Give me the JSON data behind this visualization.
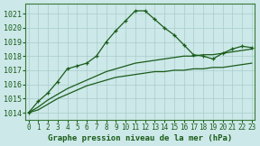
{
  "xlabel": "Graphe pression niveau de la mer (hPa)",
  "bg_color": "#cce8e8",
  "grid_color": "#aacccc",
  "line_color": "#1a5c1a",
  "x": [
    0,
    1,
    2,
    3,
    4,
    5,
    6,
    7,
    8,
    9,
    10,
    11,
    12,
    13,
    14,
    15,
    16,
    17,
    18,
    19,
    20,
    21,
    22,
    23
  ],
  "y_main": [
    1014.0,
    1014.8,
    1015.4,
    1016.2,
    1017.1,
    1017.3,
    1017.5,
    1018.0,
    1019.0,
    1019.8,
    1020.5,
    1021.2,
    1021.2,
    1020.6,
    1020.0,
    1019.5,
    1018.8,
    1018.1,
    1018.0,
    1017.8,
    1018.2,
    1018.5,
    1018.7,
    1018.6
  ],
  "y_smooth1": [
    1014.0,
    1014.4,
    1014.9,
    1015.3,
    1015.7,
    1016.0,
    1016.3,
    1016.6,
    1016.9,
    1017.1,
    1017.3,
    1017.5,
    1017.6,
    1017.7,
    1017.8,
    1017.9,
    1018.0,
    1018.0,
    1018.1,
    1018.1,
    1018.2,
    1018.3,
    1018.4,
    1018.5
  ],
  "y_smooth2": [
    1014.0,
    1014.2,
    1014.6,
    1015.0,
    1015.3,
    1015.6,
    1015.9,
    1016.1,
    1016.3,
    1016.5,
    1016.6,
    1016.7,
    1016.8,
    1016.9,
    1016.9,
    1017.0,
    1017.0,
    1017.1,
    1017.1,
    1017.2,
    1017.2,
    1017.3,
    1017.4,
    1017.5
  ],
  "ylim": [
    1013.5,
    1021.7
  ],
  "yticks": [
    1014,
    1015,
    1016,
    1017,
    1018,
    1019,
    1020,
    1021
  ],
  "xticks": [
    0,
    1,
    2,
    3,
    4,
    5,
    6,
    7,
    8,
    9,
    10,
    11,
    12,
    13,
    14,
    15,
    16,
    17,
    18,
    19,
    20,
    21,
    22,
    23
  ],
  "tick_fontsize": 6,
  "xlabel_fontsize": 6.5
}
